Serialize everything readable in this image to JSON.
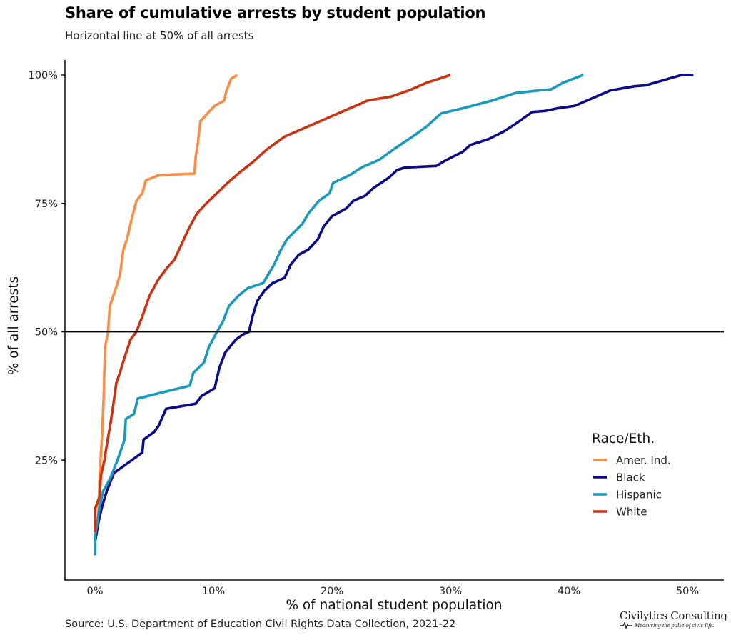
{
  "chart_data": {
    "type": "line",
    "title": "Share of cumulative arrests by student population",
    "subtitle": "Horizontal line at 50% of all arrests",
    "xlabel": "% of national student population",
    "ylabel": "% of all arrests",
    "xlim": [
      -2.5,
      53
    ],
    "ylim": [
      0,
      105
    ],
    "x_ticks": [
      0,
      10,
      20,
      30,
      40,
      50
    ],
    "x_tick_labels": [
      "0%",
      "10%",
      "20%",
      "30%",
      "40%",
      "50%"
    ],
    "y_ticks": [
      25,
      50,
      75,
      100
    ],
    "y_tick_labels": [
      "25%",
      "50%",
      "75%",
      "100%"
    ],
    "grid": false,
    "reference_line": {
      "y": 50,
      "color": "#000000"
    },
    "legend": {
      "title": "Race/Eth.",
      "position": "right-bottom"
    },
    "series": [
      {
        "name": "Amer. Ind.",
        "color": "#fd8d45",
        "points": [
          [
            0.2,
            12
          ],
          [
            0.3,
            15
          ],
          [
            0.4,
            22
          ],
          [
            0.6,
            30
          ],
          [
            0.75,
            38
          ],
          [
            0.85,
            47
          ],
          [
            1.1,
            50
          ],
          [
            1.25,
            55
          ],
          [
            1.7,
            58
          ],
          [
            2.1,
            61
          ],
          [
            2.4,
            66
          ],
          [
            2.7,
            68
          ],
          [
            3.1,
            72
          ],
          [
            3.5,
            75.5
          ],
          [
            4.0,
            77
          ],
          [
            4.3,
            79.5
          ],
          [
            5.4,
            80.5
          ],
          [
            8.4,
            80.8
          ],
          [
            8.5,
            84
          ],
          [
            8.7,
            87
          ],
          [
            8.9,
            91
          ],
          [
            9.5,
            92.5
          ],
          [
            10.1,
            94
          ],
          [
            10.9,
            95
          ],
          [
            11.1,
            97
          ],
          [
            11.5,
            99.3
          ],
          [
            12.0,
            100
          ]
        ]
      },
      {
        "name": "Black",
        "color": "#0a0a8c",
        "points": [
          [
            0,
            9
          ],
          [
            0.3,
            13
          ],
          [
            0.6,
            16
          ],
          [
            1.0,
            19
          ],
          [
            1.6,
            22.5
          ],
          [
            3.1,
            25
          ],
          [
            4.0,
            26.5
          ],
          [
            4.1,
            29
          ],
          [
            5.0,
            30.5
          ],
          [
            5.4,
            31.8
          ],
          [
            6.0,
            35
          ],
          [
            8.5,
            36
          ],
          [
            9.0,
            37.5
          ],
          [
            10.1,
            39
          ],
          [
            10.5,
            43
          ],
          [
            11.0,
            46
          ],
          [
            11.9,
            48.5
          ],
          [
            12.5,
            49.5
          ],
          [
            13.0,
            50
          ],
          [
            13.3,
            53
          ],
          [
            13.7,
            56
          ],
          [
            14.3,
            58
          ],
          [
            15.0,
            59.5
          ],
          [
            16.0,
            60.5
          ],
          [
            16.5,
            63
          ],
          [
            17.2,
            65
          ],
          [
            18.0,
            66
          ],
          [
            18.8,
            68
          ],
          [
            19.3,
            70.5
          ],
          [
            20.0,
            72.5
          ],
          [
            21.2,
            74
          ],
          [
            21.8,
            75.5
          ],
          [
            22.8,
            76.5
          ],
          [
            23.5,
            78
          ],
          [
            24.8,
            80
          ],
          [
            25.5,
            81.5
          ],
          [
            26.2,
            82
          ],
          [
            28.8,
            82.3
          ],
          [
            29.7,
            83.5
          ],
          [
            31.0,
            85
          ],
          [
            31.7,
            86.4
          ],
          [
            33.2,
            87.5
          ],
          [
            34.5,
            89
          ],
          [
            35.5,
            90.5
          ],
          [
            36.9,
            92.8
          ],
          [
            38.0,
            93
          ],
          [
            39.0,
            93.5
          ],
          [
            40.5,
            94
          ],
          [
            41.5,
            95
          ],
          [
            42.5,
            96
          ],
          [
            43.5,
            97
          ],
          [
            45.5,
            97.8
          ],
          [
            46.5,
            98
          ],
          [
            48,
            99
          ],
          [
            49.5,
            100
          ],
          [
            50.5,
            100
          ]
        ]
      },
      {
        "name": "Hispanic",
        "color": "#1899bd",
        "points": [
          [
            0,
            6.5
          ],
          [
            0,
            10
          ],
          [
            0.4,
            16
          ],
          [
            0.7,
            19
          ],
          [
            1.3,
            21.5
          ],
          [
            1.9,
            25
          ],
          [
            2.5,
            29
          ],
          [
            2.6,
            33
          ],
          [
            3.3,
            34
          ],
          [
            3.6,
            37
          ],
          [
            6.2,
            38.5
          ],
          [
            8.0,
            39.5
          ],
          [
            8.3,
            42
          ],
          [
            9.2,
            44
          ],
          [
            9.6,
            47
          ],
          [
            10.3,
            50
          ],
          [
            10.8,
            52
          ],
          [
            11.3,
            55
          ],
          [
            12.1,
            57
          ],
          [
            12.9,
            58.5
          ],
          [
            14.2,
            59.5
          ],
          [
            15.1,
            63
          ],
          [
            15.7,
            66
          ],
          [
            16.2,
            68
          ],
          [
            17.5,
            71
          ],
          [
            18.0,
            73
          ],
          [
            18.9,
            75.5
          ],
          [
            19.8,
            77
          ],
          [
            20.1,
            79
          ],
          [
            21.5,
            80.5
          ],
          [
            22.5,
            82
          ],
          [
            24.0,
            83.5
          ],
          [
            25.5,
            86
          ],
          [
            26.8,
            88
          ],
          [
            28.0,
            90
          ],
          [
            29.2,
            92.5
          ],
          [
            31.0,
            93.5
          ],
          [
            33.5,
            95
          ],
          [
            35.5,
            96.5
          ],
          [
            37.5,
            97
          ],
          [
            38.5,
            97.2
          ],
          [
            39.5,
            98.5
          ],
          [
            41.2,
            100
          ]
        ]
      },
      {
        "name": "White",
        "color": "#cb3313",
        "points": [
          [
            0,
            11
          ],
          [
            0,
            15.5
          ],
          [
            0.4,
            18
          ],
          [
            0.5,
            22
          ],
          [
            0.8,
            25
          ],
          [
            1.0,
            28
          ],
          [
            1.3,
            32
          ],
          [
            1.5,
            35
          ],
          [
            1.8,
            40
          ],
          [
            2.1,
            42
          ],
          [
            2.5,
            45
          ],
          [
            3.0,
            48.5
          ],
          [
            3.5,
            50
          ],
          [
            4.0,
            53
          ],
          [
            4.6,
            57
          ],
          [
            5.3,
            60
          ],
          [
            6.1,
            62.5
          ],
          [
            6.7,
            64
          ],
          [
            7.3,
            67
          ],
          [
            7.9,
            70
          ],
          [
            8.6,
            73
          ],
          [
            9.4,
            75
          ],
          [
            10.3,
            77
          ],
          [
            11.2,
            79
          ],
          [
            12.2,
            81
          ],
          [
            13.3,
            83
          ],
          [
            14.5,
            85.5
          ],
          [
            16.0,
            88
          ],
          [
            17.5,
            89.5
          ],
          [
            19.5,
            91.5
          ],
          [
            21.5,
            93.5
          ],
          [
            23,
            95
          ],
          [
            25,
            95.8
          ],
          [
            26.5,
            97
          ],
          [
            28,
            98.5
          ],
          [
            30,
            100
          ]
        ]
      }
    ]
  },
  "caption": "Source: U.S. Department of Education Civil Rights Data Collection, 2021-22",
  "logo": {
    "name": "Civilytics Consulting",
    "tagline": "Measuring the pulse of civic life."
  }
}
